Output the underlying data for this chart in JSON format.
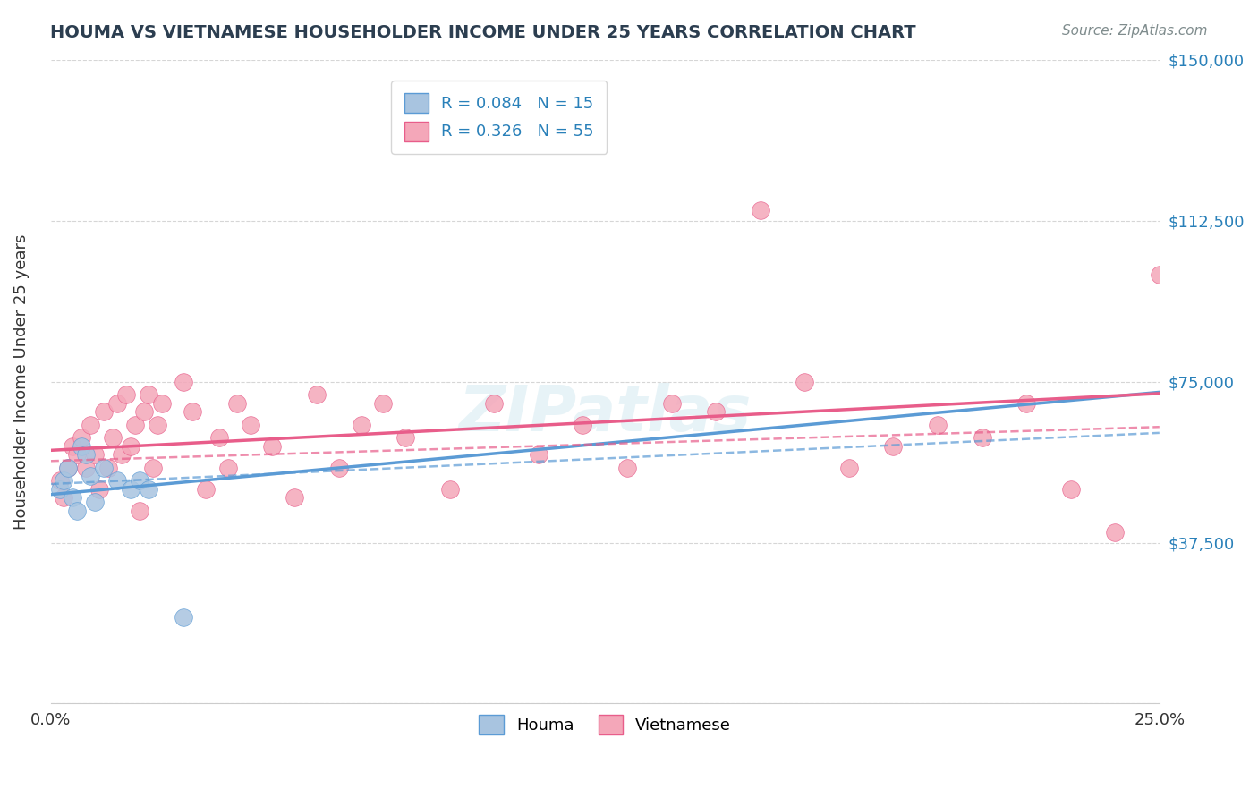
{
  "title": "HOUMA VS VIETNAMESE HOUSEHOLDER INCOME UNDER 25 YEARS CORRELATION CHART",
  "source_text": "Source: ZipAtlas.com",
  "xlabel": "",
  "ylabel": "Householder Income Under 25 years",
  "xlim": [
    0.0,
    0.25
  ],
  "ylim": [
    0,
    150000
  ],
  "yticks": [
    0,
    37500,
    75000,
    112500,
    150000
  ],
  "ytick_labels": [
    "",
    "$37,500",
    "$75,000",
    "$112,500",
    "$150,000"
  ],
  "xticks": [
    0.0,
    0.05,
    0.1,
    0.15,
    0.2,
    0.25
  ],
  "xtick_labels": [
    "0.0%",
    "",
    "",
    "",
    "",
    "25.0%"
  ],
  "houma_color": "#a8c4e0",
  "vietnamese_color": "#f4a7b9",
  "houma_line_color": "#5b9bd5",
  "vietnamese_line_color": "#e85d8a",
  "houma_R": 0.084,
  "houma_N": 15,
  "vietnamese_R": 0.326,
  "vietnamese_N": 55,
  "legend_labels": [
    "Houma",
    "Vietnamese"
  ],
  "watermark": "ZIPatlas",
  "background_color": "#ffffff",
  "houma_x": [
    0.002,
    0.003,
    0.004,
    0.005,
    0.006,
    0.007,
    0.008,
    0.009,
    0.01,
    0.012,
    0.015,
    0.018,
    0.02,
    0.022,
    0.03
  ],
  "houma_y": [
    50000,
    52000,
    55000,
    48000,
    45000,
    60000,
    58000,
    53000,
    47000,
    55000,
    52000,
    50000,
    52000,
    50000,
    20000
  ],
  "vietnamese_x": [
    0.002,
    0.003,
    0.004,
    0.005,
    0.006,
    0.007,
    0.008,
    0.009,
    0.01,
    0.011,
    0.012,
    0.013,
    0.014,
    0.015,
    0.016,
    0.017,
    0.018,
    0.019,
    0.02,
    0.021,
    0.022,
    0.023,
    0.024,
    0.025,
    0.03,
    0.032,
    0.035,
    0.038,
    0.04,
    0.042,
    0.045,
    0.05,
    0.055,
    0.06,
    0.065,
    0.07,
    0.075,
    0.08,
    0.09,
    0.1,
    0.11,
    0.12,
    0.13,
    0.14,
    0.15,
    0.16,
    0.17,
    0.18,
    0.19,
    0.2,
    0.21,
    0.22,
    0.23,
    0.24,
    0.25
  ],
  "vietnamese_y": [
    52000,
    48000,
    55000,
    60000,
    58000,
    62000,
    55000,
    65000,
    58000,
    50000,
    68000,
    55000,
    62000,
    70000,
    58000,
    72000,
    60000,
    65000,
    45000,
    68000,
    72000,
    55000,
    65000,
    70000,
    75000,
    68000,
    50000,
    62000,
    55000,
    70000,
    65000,
    60000,
    48000,
    72000,
    55000,
    65000,
    70000,
    62000,
    50000,
    70000,
    58000,
    65000,
    55000,
    70000,
    68000,
    115000,
    75000,
    55000,
    60000,
    65000,
    62000,
    70000,
    50000,
    40000,
    100000
  ]
}
